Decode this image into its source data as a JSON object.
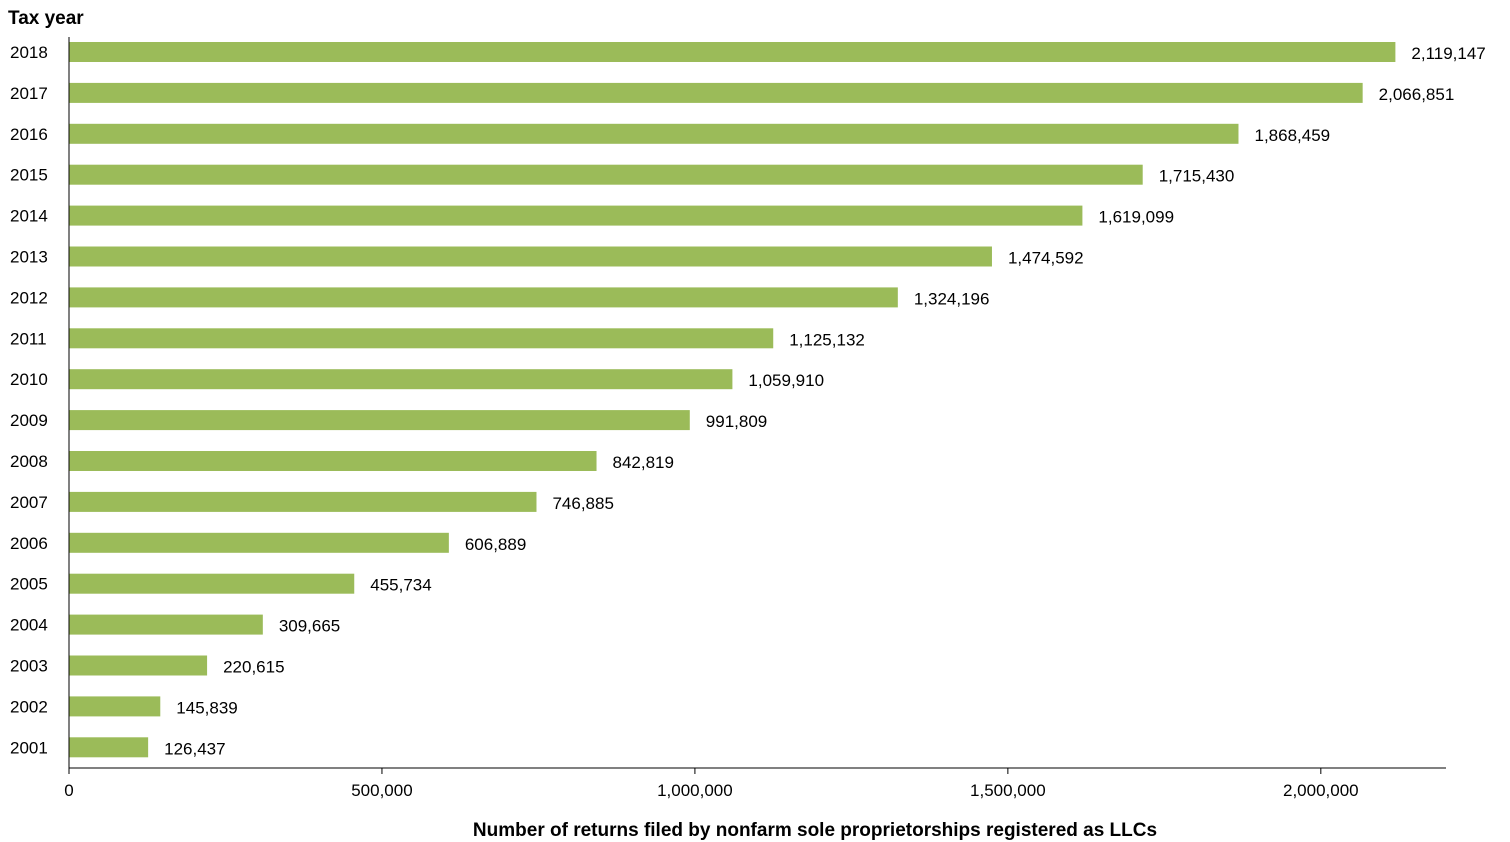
{
  "chart_data": {
    "type": "bar",
    "orientation": "horizontal",
    "ylabel": "Tax year",
    "xlabel": "Number of returns filed by nonfarm sole proprietorships registered as LLCs",
    "categories": [
      "2018",
      "2017",
      "2016",
      "2015",
      "2014",
      "2013",
      "2012",
      "2011",
      "2010",
      "2009",
      "2008",
      "2007",
      "2006",
      "2005",
      "2004",
      "2003",
      "2002",
      "2001"
    ],
    "values": [
      2119147,
      2066851,
      1868459,
      1715430,
      1619099,
      1474592,
      1324196,
      1125132,
      1059910,
      991809,
      842819,
      746885,
      606889,
      455734,
      309665,
      220615,
      145839,
      126437
    ],
    "value_labels": [
      "2,119,147",
      "2,066,851",
      "1,868,459",
      "1,715,430",
      "1,619,099",
      "1,474,592",
      "1,324,196",
      "1,125,132",
      "1,059,910",
      "991,809",
      "842,819",
      "746,885",
      "606,889",
      "455,734",
      "309,665",
      "220,615",
      "145,839",
      "126,437"
    ],
    "xlim": [
      0,
      2200000
    ],
    "x_ticks": [
      0,
      500000,
      1000000,
      1500000,
      2000000
    ],
    "x_tick_labels": [
      "0",
      "500,000",
      "1,000,000",
      "1,500,000",
      "2,000,000"
    ],
    "bar_color": "#9bbb59",
    "grid": false,
    "legend": "none"
  }
}
